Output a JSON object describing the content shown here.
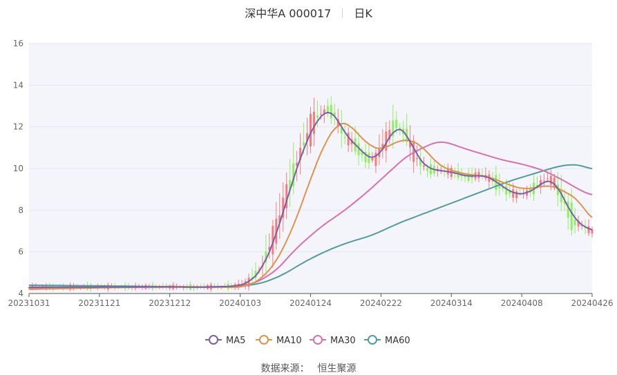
{
  "header": {
    "title": "深中华A 000017",
    "period": "日K"
  },
  "source": {
    "label": "数据来源：",
    "name": "恒生聚源"
  },
  "chart_data": {
    "type": "candlestick",
    "ylim": [
      4,
      16
    ],
    "yticks": [
      4,
      6,
      8,
      10,
      12,
      14,
      16
    ],
    "x_tick_labels": [
      "20231031",
      "20231121",
      "20231212",
      "20240103",
      "20240124",
      "20240222",
      "20240314",
      "20240408",
      "20240426"
    ],
    "colors": {
      "up": "#f47c7c",
      "down": "#8df05f",
      "MA5": "#7b5ea7",
      "MA10": "#e0914a",
      "MA30": "#d86fae",
      "MA60": "#4f9c9c"
    },
    "anchors": {
      "MA5": [
        [
          0,
          4.3
        ],
        [
          40,
          4.32
        ],
        [
          50,
          4.3
        ],
        [
          60,
          4.35
        ],
        [
          64,
          4.5
        ],
        [
          68,
          5.2
        ],
        [
          72,
          6.8
        ],
        [
          76,
          9.0
        ],
        [
          80,
          11.0
        ],
        [
          84,
          12.4
        ],
        [
          87,
          12.8
        ],
        [
          89,
          12.7
        ],
        [
          92,
          11.6
        ],
        [
          95,
          11.2
        ],
        [
          98,
          10.6
        ],
        [
          101,
          10.4
        ],
        [
          104,
          11.2
        ],
        [
          107,
          12.1
        ],
        [
          110,
          11.7
        ],
        [
          113,
          10.6
        ],
        [
          116,
          10.0
        ],
        [
          120,
          9.9
        ],
        [
          124,
          9.8
        ],
        [
          128,
          9.6
        ],
        [
          132,
          9.7
        ],
        [
          135,
          9.5
        ],
        [
          139,
          9.0
        ],
        [
          142,
          8.75
        ],
        [
          145,
          8.8
        ],
        [
          148,
          9.1
        ],
        [
          151,
          9.5
        ],
        [
          153,
          9.4
        ],
        [
          156,
          8.5
        ],
        [
          159,
          7.5
        ],
        [
          162,
          7.2
        ],
        [
          164,
          7.0
        ]
      ],
      "MA10": [
        [
          0,
          4.2
        ],
        [
          40,
          4.34
        ],
        [
          55,
          4.3
        ],
        [
          62,
          4.3
        ],
        [
          67,
          4.6
        ],
        [
          72,
          5.5
        ],
        [
          77,
          7.2
        ],
        [
          82,
          9.5
        ],
        [
          86,
          11.2
        ],
        [
          90,
          12.2
        ],
        [
          93,
          12.2
        ],
        [
          96,
          11.6
        ],
        [
          100,
          11.0
        ],
        [
          103,
          10.9
        ],
        [
          107,
          11.3
        ],
        [
          111,
          11.4
        ],
        [
          115,
          11.0
        ],
        [
          119,
          10.2
        ],
        [
          123,
          9.9
        ],
        [
          128,
          9.7
        ],
        [
          134,
          9.6
        ],
        [
          140,
          9.2
        ],
        [
          144,
          9.0
        ],
        [
          148,
          9.1
        ],
        [
          152,
          9.2
        ],
        [
          156,
          8.9
        ],
        [
          160,
          8.5
        ],
        [
          164,
          7.5
        ]
      ],
      "MA30": [
        [
          0,
          4.25
        ],
        [
          30,
          4.3
        ],
        [
          50,
          4.32
        ],
        [
          60,
          4.32
        ],
        [
          66,
          4.5
        ],
        [
          72,
          5.1
        ],
        [
          78,
          6.2
        ],
        [
          85,
          7.2
        ],
        [
          92,
          8.0
        ],
        [
          98,
          8.8
        ],
        [
          104,
          9.7
        ],
        [
          110,
          10.6
        ],
        [
          116,
          11.1
        ],
        [
          119,
          11.3
        ],
        [
          122,
          11.25
        ],
        [
          126,
          11.0
        ],
        [
          132,
          10.7
        ],
        [
          138,
          10.4
        ],
        [
          144,
          10.2
        ],
        [
          150,
          9.9
        ],
        [
          156,
          9.4
        ],
        [
          160,
          9.0
        ],
        [
          164,
          8.7
        ]
      ],
      "MA60": [
        [
          0,
          4.4
        ],
        [
          30,
          4.35
        ],
        [
          50,
          4.3
        ],
        [
          62,
          4.35
        ],
        [
          68,
          4.5
        ],
        [
          74,
          4.9
        ],
        [
          80,
          5.5
        ],
        [
          86,
          6.0
        ],
        [
          92,
          6.4
        ],
        [
          100,
          6.8
        ],
        [
          108,
          7.4
        ],
        [
          116,
          7.9
        ],
        [
          124,
          8.4
        ],
        [
          132,
          8.9
        ],
        [
          140,
          9.4
        ],
        [
          148,
          9.8
        ],
        [
          154,
          10.1
        ],
        [
          158,
          10.2
        ],
        [
          161,
          10.15
        ],
        [
          164,
          9.95
        ]
      ]
    },
    "legend": [
      {
        "name": "MA5"
      },
      {
        "name": "MA10"
      },
      {
        "name": "MA30"
      },
      {
        "name": "MA60"
      }
    ]
  }
}
